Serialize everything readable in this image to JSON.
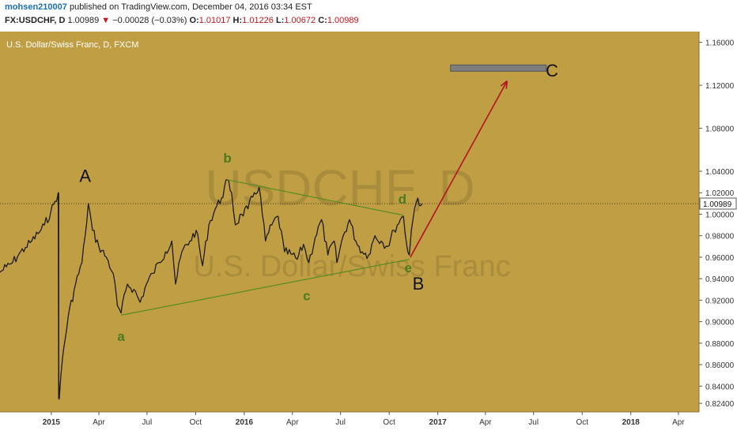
{
  "header": {
    "username": "mohsen210007",
    "published": "published on TradingView.com, December 04, 2016 03:34 EST"
  },
  "quote": {
    "symbol": "FX:USDCHF, D",
    "last": "1.00989",
    "arrow": "▼",
    "change": "−0.00028 (−0.03%)",
    "o_label": "O:",
    "o_value": "1.01017",
    "h_label": "H:",
    "h_value": "1.01226",
    "l_label": "L:",
    "l_value": "1.00672",
    "c_label": "C:",
    "c_value": "1.00989"
  },
  "chart_data": {
    "type": "line",
    "title": "U.S. Dollar/Swiss Franc, D, FXCM",
    "watermark_symbol": "USDCHF, D",
    "watermark_name": "U.S. Dollar/Swiss Franc",
    "x_axis_labels": [
      "2015",
      "Apr",
      "Jul",
      "Oct",
      "2016",
      "Apr",
      "Jul",
      "Oct",
      "2017",
      "Apr",
      "Jul",
      "Oct",
      "2018",
      "Apr"
    ],
    "y_ticks": [
      "0.82400",
      "0.84000",
      "0.86000",
      "0.88000",
      "0.90000",
      "0.92000",
      "0.94000",
      "0.96000",
      "0.98000",
      "1.00000",
      "1.02000",
      "1.04000",
      "1.08000",
      "1.12000",
      "1.16000"
    ],
    "ylim": [
      0.816,
      1.17
    ],
    "xlim": [
      "2014-09-26",
      "2018-05-10"
    ],
    "last_price": "1.00989",
    "series": [
      {
        "values": [
          [
            "2014-09-26",
            0.946
          ],
          [
            "2014-10-08",
            0.951
          ],
          [
            "2014-10-20",
            0.955
          ],
          [
            "2014-11-01",
            0.963
          ],
          [
            "2014-11-13",
            0.969
          ],
          [
            "2014-11-25",
            0.975
          ],
          [
            "2014-12-07",
            0.982
          ],
          [
            "2014-12-19",
            0.99
          ],
          [
            "2014-12-31",
            1.002
          ],
          [
            "2015-01-08",
            1.012
          ],
          [
            "2015-01-14",
            1.02
          ],
          [
            "2015-01-15",
            0.85
          ],
          [
            "2015-01-16",
            0.828
          ],
          [
            "2015-01-22",
            0.865
          ],
          [
            "2015-02-02",
            0.905
          ],
          [
            "2015-02-16",
            0.935
          ],
          [
            "2015-02-28",
            0.955
          ],
          [
            "2015-03-06",
            0.98
          ],
          [
            "2015-03-12",
            1.01
          ],
          [
            "2015-03-20",
            0.985
          ],
          [
            "2015-04-01",
            0.97
          ],
          [
            "2015-04-15",
            0.96
          ],
          [
            "2015-04-28",
            0.945
          ],
          [
            "2015-05-06",
            0.915
          ],
          [
            "2015-05-13",
            0.908
          ],
          [
            "2015-05-25",
            0.935
          ],
          [
            "2015-06-06",
            0.93
          ],
          [
            "2015-06-18",
            0.918
          ],
          [
            "2015-06-30",
            0.935
          ],
          [
            "2015-07-12",
            0.945
          ],
          [
            "2015-07-24",
            0.955
          ],
          [
            "2015-08-05",
            0.965
          ],
          [
            "2015-08-17",
            0.975
          ],
          [
            "2015-08-24",
            0.935
          ],
          [
            "2015-09-05",
            0.965
          ],
          [
            "2015-09-20",
            0.975
          ],
          [
            "2015-10-02",
            0.985
          ],
          [
            "2015-10-14",
            0.952
          ],
          [
            "2015-10-26",
            0.99
          ],
          [
            "2015-11-07",
            1.005
          ],
          [
            "2015-11-19",
            1.015
          ],
          [
            "2015-11-30",
            1.032
          ],
          [
            "2015-12-08",
            1.02
          ],
          [
            "2015-12-15",
            0.99
          ],
          [
            "2015-12-27",
            1.0
          ],
          [
            "2016-01-08",
            1.005
          ],
          [
            "2016-01-20",
            1.02
          ],
          [
            "2016-01-29",
            1.025
          ],
          [
            "2016-02-10",
            0.975
          ],
          [
            "2016-02-22",
            0.99
          ],
          [
            "2016-03-05",
            0.998
          ],
          [
            "2016-03-17",
            0.965
          ],
          [
            "2016-03-29",
            0.963
          ],
          [
            "2016-04-10",
            0.958
          ],
          [
            "2016-04-22",
            0.972
          ],
          [
            "2016-05-02",
            0.955
          ],
          [
            "2016-05-14",
            0.978
          ],
          [
            "2016-05-26",
            0.995
          ],
          [
            "2016-06-07",
            0.962
          ],
          [
            "2016-06-19",
            0.975
          ],
          [
            "2016-06-24",
            0.955
          ],
          [
            "2016-07-06",
            0.98
          ],
          [
            "2016-07-18",
            0.995
          ],
          [
            "2016-07-30",
            0.975
          ],
          [
            "2016-08-11",
            0.965
          ],
          [
            "2016-08-23",
            0.962
          ],
          [
            "2016-09-04",
            0.98
          ],
          [
            "2016-09-16",
            0.975
          ],
          [
            "2016-09-28",
            0.97
          ],
          [
            "2016-10-10",
            0.985
          ],
          [
            "2016-10-22",
            0.995
          ],
          [
            "2016-10-28",
            0.998
          ],
          [
            "2016-11-03",
            0.972
          ],
          [
            "2016-11-08",
            0.962
          ],
          [
            "2016-11-12",
            0.985
          ],
          [
            "2016-11-18",
            1.005
          ],
          [
            "2016-11-24",
            1.015
          ],
          [
            "2016-11-30",
            1.008
          ],
          [
            "2016-12-02",
            1.01
          ]
        ]
      }
    ],
    "annotations": [
      {
        "text": "a",
        "x": "2015-05-13",
        "y": 0.882
      },
      {
        "text": "b",
        "x": "2015-11-30",
        "y": 1.048
      },
      {
        "text": "c",
        "x": "2016-04-28",
        "y": 0.92
      },
      {
        "text": "d",
        "x": "2016-10-26",
        "y": 1.01
      },
      {
        "text": "e",
        "x": "2016-11-06",
        "y": 0.946
      },
      {
        "text": "A",
        "x": "2015-03-06",
        "y": 1.03
      },
      {
        "text": "B",
        "x": "2016-11-25",
        "y": 0.93
      },
      {
        "text": "C",
        "x": "2017-08-05",
        "y": 1.128
      }
    ],
    "trendlines": [
      {
        "from": [
          "2015-05-13",
          0.906
        ],
        "to": [
          "2016-11-08",
          0.958
        ],
        "color": "#4f8a1e"
      },
      {
        "from": [
          "2015-11-30",
          1.032
        ],
        "to": [
          "2016-10-28",
          0.999
        ],
        "color": "#4f8a1e"
      }
    ],
    "arrow": {
      "from": [
        "2016-11-10",
        0.96
      ],
      "to": [
        "2017-05-12",
        1.124
      ],
      "color": "#b5121b"
    },
    "target_zone": {
      "from": [
        "2017-01-25",
        1.136
      ],
      "to": [
        "2017-07-25",
        1.136
      ],
      "color": "#555555"
    },
    "colors": {
      "background": "#c09f44",
      "price": "#1e1a12",
      "annotation_green": "#4a7b1e",
      "wave_label": "#111111",
      "watermark": "#a98d3c"
    }
  }
}
